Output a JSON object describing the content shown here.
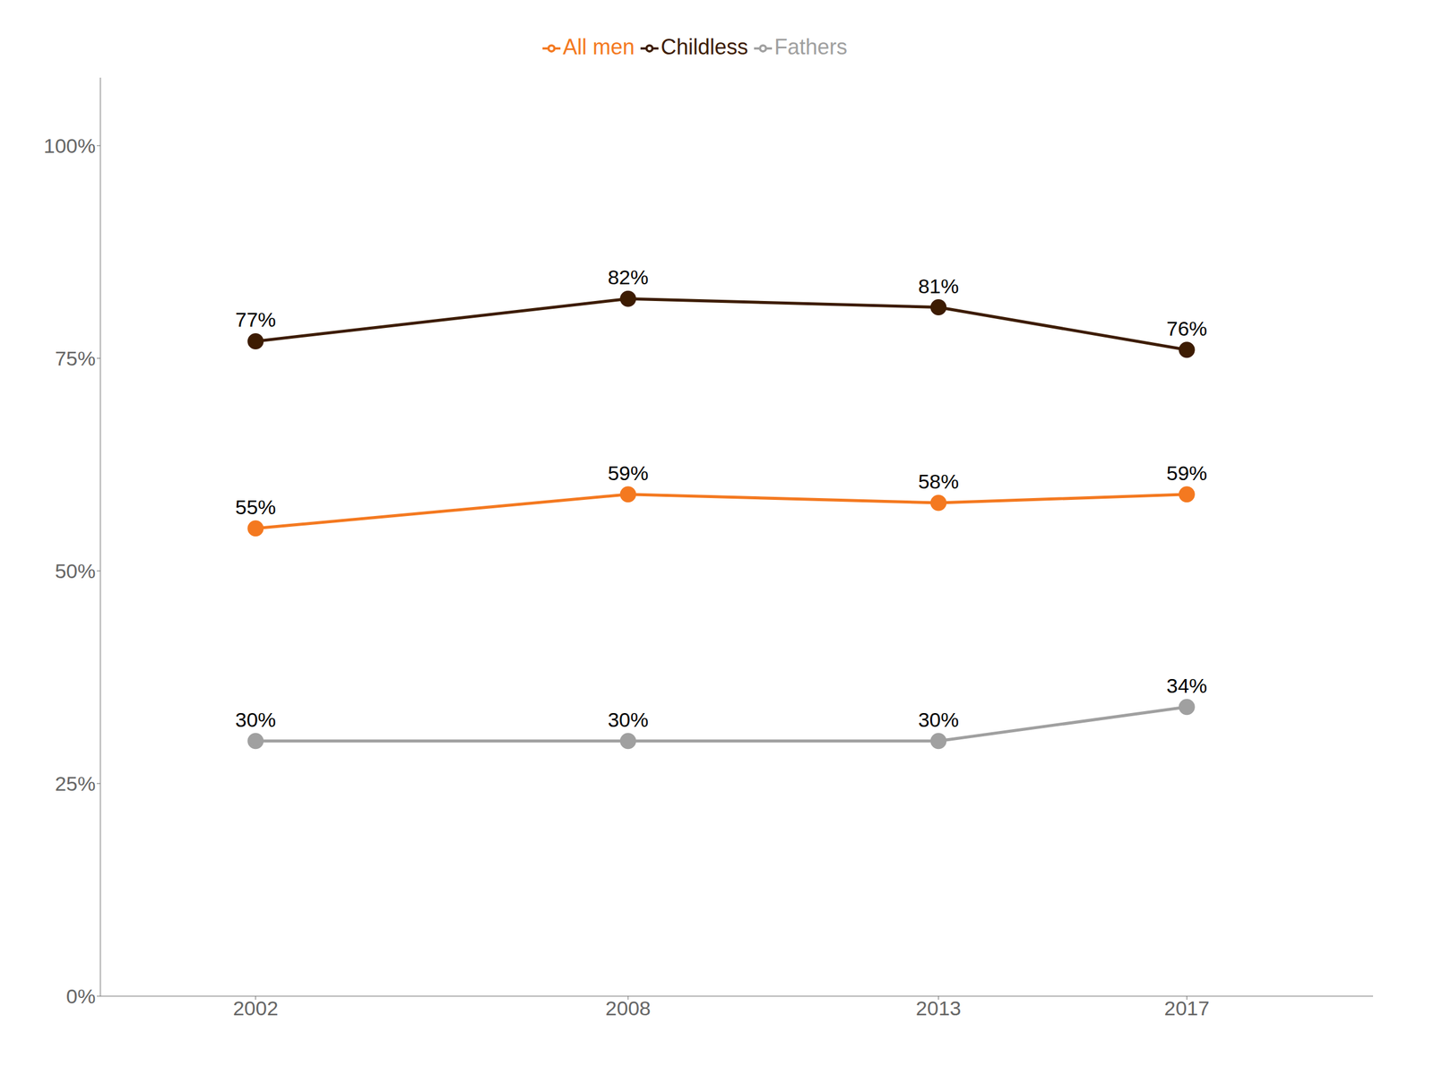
{
  "chart_data": {
    "type": "line",
    "x": [
      2002,
      2008,
      2013,
      2017
    ],
    "xlim": [
      1999.5,
      2020.0
    ],
    "xticks": [
      2002,
      2008,
      2013,
      2017
    ],
    "ylim": [
      0.0,
      1.08
    ],
    "yticks": [
      {
        "value": 0.0,
        "label": "0%"
      },
      {
        "value": 0.25,
        "label": "25%"
      },
      {
        "value": 0.5,
        "label": "50%"
      },
      {
        "value": 0.75,
        "label": "75%"
      },
      {
        "value": 1.0,
        "label": "100%"
      }
    ],
    "grid": false,
    "legend": "top",
    "data_labels": true,
    "series": [
      {
        "name": "All men",
        "color": "#F47920",
        "marker": "circle",
        "values": [
          0.55,
          0.59,
          0.58,
          0.59
        ],
        "value_labels": [
          "55%",
          "59%",
          "58%",
          "59%"
        ]
      },
      {
        "name": "Childless",
        "color": "#3D1C02",
        "marker": "circle",
        "values": [
          0.77,
          0.82,
          0.81,
          0.76
        ],
        "value_labels": [
          "77%",
          "82%",
          "81%",
          "76%"
        ]
      },
      {
        "name": "Fathers",
        "color": "#A0A0A0",
        "marker": "circle",
        "values": [
          0.3,
          0.3,
          0.3,
          0.34
        ],
        "value_labels": [
          "30%",
          "30%",
          "30%",
          "34%"
        ]
      }
    ]
  }
}
